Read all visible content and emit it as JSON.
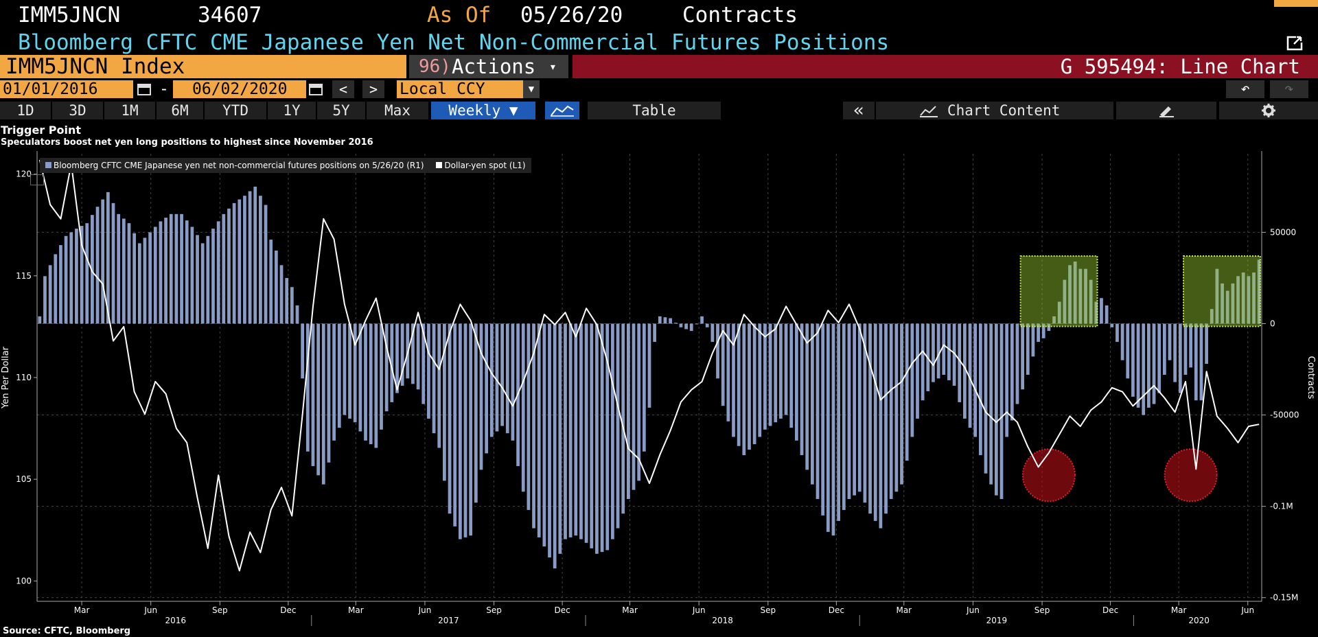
{
  "header": {
    "ticker": "IMM5JNCN",
    "value": "34607",
    "as_of_label": "As Of",
    "as_of_date": "05/26/20",
    "units": "Contracts",
    "description": "Bloomberg CFTC CME Japanese Yen Net Non-Commercial Futures Positions",
    "security": "IMM5JNCN Index",
    "actions_num": "96)",
    "actions_label": "Actions",
    "chart_id": "G 595494: Line Chart"
  },
  "date_range": {
    "start": "01/01/2016",
    "dash": "-",
    "end": "06/02/2020",
    "prev": "<",
    "next": ">",
    "currency": "Local CCY",
    "undo": "↶",
    "redo": "↷"
  },
  "toolbar": {
    "periods": [
      "1D",
      "3D",
      "1M",
      "6M",
      "YTD",
      "1Y",
      "5Y",
      "Max"
    ],
    "frequency": "Weekly ▼",
    "table": "Table",
    "collapse": "«",
    "chart_content": "Chart Content",
    "colors": {
      "accent": "#1d5bb7",
      "security_bar": "#f3a742",
      "chart_bar": "#8b1022"
    }
  },
  "chart_header": {
    "title": "Trigger Point",
    "subtitle": "Speculators boost net yen long positions to highest since November 2016"
  },
  "legend": {
    "series1": "Bloomberg CFTC CME Japanese yen net non-commercial futures positions on 5/26/20 (R1)",
    "series2": "Dollar-yen spot (L1)"
  },
  "footer": {
    "source": "Source: CFTC, Bloomberg"
  },
  "chart_data": {
    "type": "bar",
    "start_date": "2016-01-05",
    "frequency": "weekly",
    "title": "Trigger Point",
    "ylabel_left": "Yen Per Dollar",
    "ylabel_right": "Contracts",
    "ylim_left": [
      99,
      121
    ],
    "ylim_right": [
      -152000,
      93000
    ],
    "left_ticks": [
      100,
      105,
      110,
      115,
      120
    ],
    "right_ticks": [
      {
        "value": 50000,
        "label": "50000"
      },
      {
        "value": 0,
        "label": "0"
      },
      {
        "value": -50000,
        "label": "-50000"
      },
      {
        "value": -100000,
        "label": "-0.1M"
      },
      {
        "value": -150000,
        "label": "-0.15M"
      }
    ],
    "month_ticks": [
      "Mar",
      "Jun",
      "Sep",
      "Dec",
      "Mar",
      "Jun",
      "Sep",
      "Dec",
      "Mar",
      "Jun",
      "Sep",
      "Dec",
      "Mar",
      "Jun",
      "Sep",
      "Dec",
      "Mar",
      "Jun"
    ],
    "year_labels": [
      "2016",
      "2017",
      "2018",
      "2019",
      "2020"
    ],
    "series": [
      {
        "name": "Bloomberg CFTC CME Japanese yen net non-commercial futures positions on 5/26/20",
        "type": "bar",
        "axis": "right",
        "color": "#8a9cc6",
        "anchors": [
          [
            0,
            4000
          ],
          [
            1,
            26000
          ],
          [
            3,
            38000
          ],
          [
            5,
            48000
          ],
          [
            7,
            52000
          ],
          [
            9,
            55000
          ],
          [
            11,
            64000
          ],
          [
            13,
            72000
          ],
          [
            15,
            60000
          ],
          [
            17,
            55000
          ],
          [
            19,
            44000
          ],
          [
            21,
            50000
          ],
          [
            23,
            56000
          ],
          [
            25,
            60000
          ],
          [
            27,
            60000
          ],
          [
            29,
            53000
          ],
          [
            31,
            44000
          ],
          [
            33,
            52000
          ],
          [
            35,
            60000
          ],
          [
            37,
            66000
          ],
          [
            39,
            70000
          ],
          [
            41,
            75000
          ],
          [
            43,
            65000
          ],
          [
            44,
            46000
          ],
          [
            45,
            40000
          ],
          [
            46,
            32000
          ],
          [
            47,
            25000
          ],
          [
            48,
            20000
          ],
          [
            49,
            10000
          ],
          [
            50,
            -30000
          ],
          [
            51,
            -70000
          ],
          [
            52,
            -78000
          ],
          [
            54,
            -88000
          ],
          [
            56,
            -64000
          ],
          [
            58,
            -50000
          ],
          [
            60,
            -54000
          ],
          [
            62,
            -64000
          ],
          [
            64,
            -68000
          ],
          [
            66,
            -48000
          ],
          [
            68,
            -38000
          ],
          [
            70,
            -30000
          ],
          [
            72,
            -36000
          ],
          [
            74,
            -52000
          ],
          [
            76,
            -68000
          ],
          [
            77,
            -86000
          ],
          [
            78,
            -104000
          ],
          [
            80,
            -118000
          ],
          [
            82,
            -116000
          ],
          [
            84,
            -80000
          ],
          [
            86,
            -62000
          ],
          [
            88,
            -56000
          ],
          [
            90,
            -64000
          ],
          [
            92,
            -92000
          ],
          [
            94,
            -112000
          ],
          [
            96,
            -122000
          ],
          [
            98,
            -134000
          ],
          [
            100,
            -118000
          ],
          [
            102,
            -116000
          ],
          [
            104,
            -120000
          ],
          [
            106,
            -126000
          ],
          [
            108,
            -124000
          ],
          [
            110,
            -112000
          ],
          [
            112,
            -96000
          ],
          [
            114,
            -86000
          ],
          [
            115,
            -70000
          ],
          [
            116,
            -46000
          ],
          [
            117,
            -10000
          ],
          [
            118,
            4000
          ],
          [
            120,
            3000
          ],
          [
            122,
            -2000
          ],
          [
            124,
            -4000
          ],
          [
            126,
            4000
          ],
          [
            127,
            -2000
          ],
          [
            128,
            -10000
          ],
          [
            129,
            -30000
          ],
          [
            130,
            -45000
          ],
          [
            132,
            -62000
          ],
          [
            134,
            -72000
          ],
          [
            136,
            -66000
          ],
          [
            138,
            -58000
          ],
          [
            140,
            -54000
          ],
          [
            142,
            -50000
          ],
          [
            144,
            -64000
          ],
          [
            146,
            -80000
          ],
          [
            148,
            -96000
          ],
          [
            150,
            -114000
          ],
          [
            151,
            -116000
          ],
          [
            152,
            -108000
          ],
          [
            154,
            -96000
          ],
          [
            156,
            -92000
          ],
          [
            158,
            -104000
          ],
          [
            160,
            -112000
          ],
          [
            162,
            -96000
          ],
          [
            164,
            -88000
          ],
          [
            166,
            -62000
          ],
          [
            168,
            -42000
          ],
          [
            170,
            -32000
          ],
          [
            172,
            -28000
          ],
          [
            174,
            -34000
          ],
          [
            176,
            -52000
          ],
          [
            178,
            -62000
          ],
          [
            180,
            -82000
          ],
          [
            182,
            -94000
          ],
          [
            183,
            -96000
          ],
          [
            184,
            -62000
          ],
          [
            186,
            -44000
          ],
          [
            188,
            -28000
          ],
          [
            189,
            -18000
          ],
          [
            190,
            -10000
          ],
          [
            191,
            -8000
          ],
          [
            192,
            -4000
          ],
          [
            193,
            4000
          ],
          [
            194,
            12000
          ],
          [
            195,
            24000
          ],
          [
            196,
            32000
          ],
          [
            197,
            34000
          ],
          [
            198,
            30000
          ],
          [
            199,
            30000
          ],
          [
            200,
            24000
          ],
          [
            201,
            12000
          ],
          [
            202,
            14000
          ],
          [
            203,
            10000
          ],
          [
            204,
            -2000
          ],
          [
            205,
            -10000
          ],
          [
            206,
            -20000
          ],
          [
            207,
            -30000
          ],
          [
            208,
            -40000
          ],
          [
            209,
            -46000
          ],
          [
            210,
            -50000
          ],
          [
            211,
            -46000
          ],
          [
            212,
            -44000
          ],
          [
            213,
            -38000
          ],
          [
            214,
            -28000
          ],
          [
            215,
            -20000
          ],
          [
            216,
            -32000
          ],
          [
            217,
            -38000
          ],
          [
            218,
            -28000
          ],
          [
            219,
            -24000
          ],
          [
            220,
            -42000
          ],
          [
            221,
            -42000
          ],
          [
            222,
            -22000
          ],
          [
            223,
            8000
          ],
          [
            224,
            30000
          ],
          [
            225,
            22000
          ],
          [
            226,
            18000
          ],
          [
            227,
            22000
          ],
          [
            228,
            26000
          ],
          [
            229,
            28000
          ],
          [
            230,
            26000
          ],
          [
            231,
            28000
          ],
          [
            232,
            35000
          ]
        ]
      },
      {
        "name": "Dollar-yen spot",
        "type": "line",
        "axis": "left",
        "color": "#ffffff",
        "anchors": [
          [
            0,
            120.7
          ],
          [
            2,
            118.5
          ],
          [
            4,
            117.8
          ],
          [
            6,
            120.5
          ],
          [
            8,
            116.5
          ],
          [
            10,
            115.2
          ],
          [
            12,
            114.6
          ],
          [
            14,
            111.8
          ],
          [
            16,
            112.5
          ],
          [
            18,
            109.3
          ],
          [
            20,
            108.2
          ],
          [
            22,
            109.8
          ],
          [
            24,
            109.2
          ],
          [
            26,
            107.5
          ],
          [
            28,
            106.8
          ],
          [
            30,
            104.1
          ],
          [
            32,
            101.6
          ],
          [
            34,
            105.2
          ],
          [
            36,
            102.2
          ],
          [
            38,
            100.5
          ],
          [
            40,
            102.4
          ],
          [
            42,
            101.4
          ],
          [
            44,
            103.5
          ],
          [
            46,
            104.6
          ],
          [
            48,
            103.2
          ],
          [
            50,
            108.2
          ],
          [
            52,
            113.5
          ],
          [
            54,
            117.8
          ],
          [
            56,
            116.8
          ],
          [
            58,
            113.6
          ],
          [
            60,
            111.6
          ],
          [
            62,
            112.8
          ],
          [
            64,
            113.9
          ],
          [
            66,
            111.5
          ],
          [
            68,
            109.4
          ],
          [
            70,
            111.2
          ],
          [
            72,
            113.2
          ],
          [
            74,
            111.2
          ],
          [
            76,
            110.4
          ],
          [
            78,
            112.2
          ],
          [
            80,
            113.6
          ],
          [
            82,
            112.8
          ],
          [
            84,
            111.2
          ],
          [
            86,
            110.2
          ],
          [
            88,
            109.5
          ],
          [
            90,
            108.6
          ],
          [
            92,
            109.8
          ],
          [
            94,
            111.2
          ],
          [
            96,
            113.1
          ],
          [
            98,
            112.6
          ],
          [
            100,
            113.2
          ],
          [
            102,
            112.0
          ],
          [
            104,
            113.4
          ],
          [
            106,
            112.6
          ],
          [
            108,
            110.8
          ],
          [
            110,
            108.6
          ],
          [
            112,
            106.5
          ],
          [
            114,
            106.0
          ],
          [
            116,
            104.8
          ],
          [
            118,
            106.2
          ],
          [
            120,
            107.4
          ],
          [
            122,
            108.8
          ],
          [
            124,
            109.4
          ],
          [
            126,
            109.8
          ],
          [
            128,
            111.2
          ],
          [
            130,
            112.3
          ],
          [
            132,
            111.6
          ],
          [
            134,
            113.1
          ],
          [
            136,
            112.5
          ],
          [
            138,
            112.0
          ],
          [
            140,
            112.4
          ],
          [
            142,
            113.5
          ],
          [
            144,
            112.6
          ],
          [
            146,
            111.7
          ],
          [
            148,
            112.2
          ],
          [
            150,
            113.3
          ],
          [
            152,
            112.7
          ],
          [
            154,
            113.6
          ],
          [
            156,
            112.4
          ],
          [
            158,
            110.6
          ],
          [
            160,
            108.9
          ],
          [
            162,
            109.4
          ],
          [
            164,
            109.8
          ],
          [
            166,
            110.7
          ],
          [
            168,
            111.3
          ],
          [
            170,
            110.6
          ],
          [
            172,
            111.6
          ],
          [
            174,
            111.2
          ],
          [
            176,
            110.5
          ],
          [
            178,
            109.4
          ],
          [
            180,
            108.3
          ],
          [
            182,
            107.8
          ],
          [
            184,
            108.3
          ],
          [
            186,
            107.8
          ],
          [
            188,
            106.6
          ],
          [
            190,
            105.6
          ],
          [
            192,
            106.3
          ],
          [
            194,
            107.2
          ],
          [
            196,
            108.1
          ],
          [
            198,
            107.6
          ],
          [
            200,
            108.4
          ],
          [
            202,
            108.8
          ],
          [
            204,
            109.5
          ],
          [
            206,
            109.3
          ],
          [
            208,
            108.6
          ],
          [
            210,
            109.1
          ],
          [
            212,
            109.6
          ],
          [
            214,
            109.0
          ],
          [
            216,
            108.3
          ],
          [
            218,
            109.8
          ],
          [
            220,
            105.5
          ],
          [
            222,
            110.3
          ],
          [
            224,
            108.1
          ],
          [
            226,
            107.5
          ],
          [
            228,
            106.8
          ],
          [
            230,
            107.6
          ],
          [
            232,
            107.7
          ]
        ]
      }
    ],
    "highlights": [
      {
        "type": "box",
        "from_week": 187,
        "to_week": 202,
        "color": "#9acd32"
      },
      {
        "type": "box",
        "from_week": 218,
        "to_week": 233,
        "color": "#9acd32"
      },
      {
        "type": "circle",
        "week": 192,
        "value": 105.3,
        "color": "#c8101a"
      },
      {
        "type": "circle",
        "week": 219,
        "value": 105.3,
        "color": "#c8101a"
      }
    ],
    "grid": true,
    "legend_position": "top-left"
  }
}
